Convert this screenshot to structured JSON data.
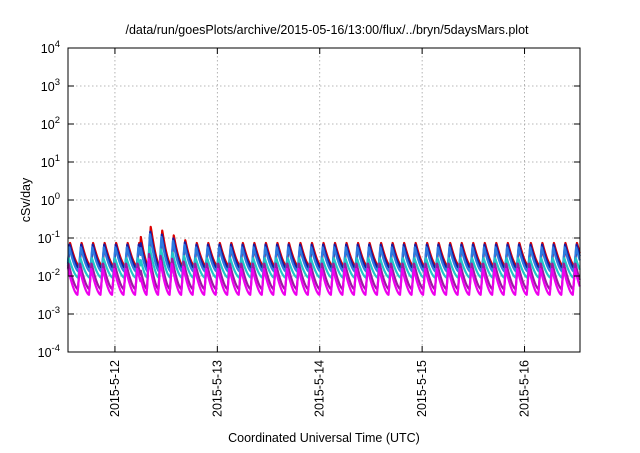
{
  "chart_data": {
    "type": "line",
    "title": "/data/run/goesPlots/archive/2015-05-16/13:00/flux/../bryn/5daysMars.plot",
    "xlabel": "Coordinated Universal Time (UTC)",
    "ylabel": "cSv/day",
    "y_scale": "log",
    "ylim": [
      0.0001,
      10000
    ],
    "y_ticks": [
      {
        "base": "10",
        "exp": "-4",
        "value": 0.0001
      },
      {
        "base": "10",
        "exp": "-3",
        "value": 0.001
      },
      {
        "base": "10",
        "exp": "-2",
        "value": 0.01
      },
      {
        "base": "10",
        "exp": "-1",
        "value": 0.1
      },
      {
        "base": "10",
        "exp": "0",
        "value": 1
      },
      {
        "base": "10",
        "exp": "1",
        "value": 10
      },
      {
        "base": "10",
        "exp": "2",
        "value": 100
      },
      {
        "base": "10",
        "exp": "3",
        "value": 1000
      },
      {
        "base": "10",
        "exp": "4",
        "value": 10000
      }
    ],
    "x_ticks": [
      "2015-5-12",
      "2015-5-13",
      "2015-5-14",
      "2015-5-15",
      "2015-5-16"
    ],
    "xlim": [
      "2015-05-11 13:00",
      "2015-05-16 13:00"
    ],
    "grid": true,
    "oscillation_period_hours": 2.7,
    "series": [
      {
        "color": "#dd0000",
        "peak": 0.075,
        "trough": 0.018,
        "spike_peak": 0.2
      },
      {
        "color": "#1a1aa0",
        "peak": 0.068,
        "trough": 0.016,
        "spike_peak": 0.15
      },
      {
        "color": "#2e7be0",
        "peak": 0.058,
        "trough": 0.013,
        "spike_peak": 0.13
      },
      {
        "color": "#20c8c8",
        "peak": 0.03,
        "trough": 0.009,
        "spike_peak": 0.06
      },
      {
        "color": "#9b1aa0",
        "peak": 0.022,
        "trough": 0.0045,
        "spike_peak": 0.04
      },
      {
        "color": "#ee00ee",
        "peak": 0.016,
        "trough": 0.0032,
        "spike_peak": 0.03
      }
    ],
    "spike_window": [
      "2015-05-12 06:00",
      "2015-05-12 12:00"
    ]
  }
}
